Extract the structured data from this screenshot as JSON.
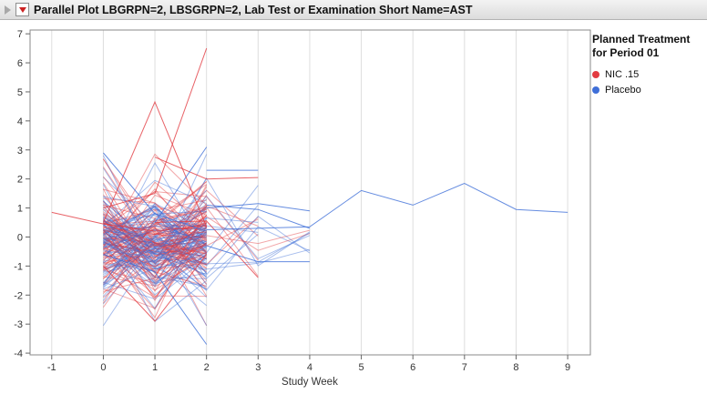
{
  "window": {
    "title": "Parallel Plot LBGRPN=2, LBSGRPN=2, Lab Test or Examination Short Name=AST"
  },
  "chart_data": {
    "type": "line",
    "title": "Parallel Plot LBGRPN=2, LBSGRPN=2, Lab Test or Examination Short Name=AST",
    "xlabel": "Study Week",
    "ylabel": "",
    "xticks": [
      -1,
      0,
      1,
      2,
      3,
      4,
      5,
      6,
      7,
      8,
      9
    ],
    "yticks": [
      7,
      6,
      5,
      4,
      3,
      2,
      1,
      0,
      -1,
      -2,
      -3,
      -4
    ],
    "xlim": [
      -1.42,
      9.44
    ],
    "ylim": [
      -4.06,
      7.13
    ],
    "grid": "vertical",
    "legend": {
      "title_line1": "Planned Treatment",
      "title_line2": "for Period 01",
      "position": "right",
      "entries": [
        {
          "label": "NIC .15",
          "color": "#e23b41"
        },
        {
          "label": "Placebo",
          "color": "#3f6fd8"
        }
      ]
    },
    "colors": {
      "red": "#e23b41",
      "blue": "#3f6fd8",
      "line_opacity": 0.45
    },
    "notable_lines": [
      {
        "group": "NIC .15",
        "points": [
          [
            -1,
            0.85
          ],
          [
            0,
            0.45
          ],
          [
            1,
            0.2
          ],
          [
            2,
            0.4
          ]
        ]
      },
      {
        "group": "NIC .15",
        "points": [
          [
            0,
            0.5
          ],
          [
            1,
            4.65
          ],
          [
            2,
            0.35
          ]
        ]
      },
      {
        "group": "NIC .15",
        "points": [
          [
            0,
            1.0
          ],
          [
            1,
            1.5
          ],
          [
            2,
            6.5
          ]
        ]
      },
      {
        "group": "NIC .15",
        "points": [
          [
            0,
            -1.0
          ],
          [
            1,
            -2.9
          ],
          [
            2,
            -0.6
          ]
        ]
      },
      {
        "group": "NIC .15",
        "points": [
          [
            1,
            0.5
          ],
          [
            2,
            0.55
          ],
          [
            3,
            -1.4
          ]
        ]
      },
      {
        "group": "NIC .15",
        "points": [
          [
            1,
            2.75
          ],
          [
            2,
            2.0
          ],
          [
            3,
            2.05
          ]
        ]
      },
      {
        "group": "Placebo",
        "points": [
          [
            0,
            -0.6
          ],
          [
            1,
            -1.2
          ],
          [
            2,
            -3.7
          ]
        ]
      },
      {
        "group": "Placebo",
        "points": [
          [
            0,
            2.9
          ],
          [
            1,
            0.8
          ],
          [
            2,
            0.2
          ]
        ]
      },
      {
        "group": "Placebo",
        "points": [
          [
            1,
            0.5
          ],
          [
            2,
            3.1
          ]
        ]
      },
      {
        "group": "Placebo",
        "points": [
          [
            2,
            2.3
          ],
          [
            3,
            2.3
          ]
        ]
      },
      {
        "group": "Placebo",
        "points": [
          [
            2,
            1.0
          ],
          [
            3,
            1.15
          ],
          [
            4,
            0.9
          ]
        ]
      },
      {
        "group": "Placebo",
        "points": [
          [
            2,
            -0.3
          ],
          [
            3,
            -0.85
          ],
          [
            4,
            -0.85
          ]
        ]
      },
      {
        "group": "Placebo",
        "points": [
          [
            2,
            1.1
          ],
          [
            3,
            0.95
          ],
          [
            4,
            0.3
          ]
        ]
      },
      {
        "group": "Placebo",
        "points": [
          [
            2,
            0.25
          ],
          [
            3,
            0.3
          ],
          [
            4,
            0.35
          ],
          [
            5,
            1.6
          ],
          [
            6,
            1.1
          ],
          [
            7,
            1.85
          ],
          [
            8,
            0.95
          ],
          [
            9,
            0.85
          ]
        ]
      }
    ],
    "background_cluster": {
      "seed": 7,
      "lines_per_group": 90,
      "weeks": [
        0,
        1,
        2
      ],
      "mean": -0.12,
      "sd": 1.02,
      "clamp": [
        -3.05,
        2.85
      ],
      "extend3_fraction": 0.1,
      "extend3_sd": 0.9,
      "extend3_clamp": [
        -1.35,
        2.25
      ],
      "extend4_fraction": 0.25,
      "extend4_clamp": [
        -0.85,
        0.45
      ]
    }
  }
}
